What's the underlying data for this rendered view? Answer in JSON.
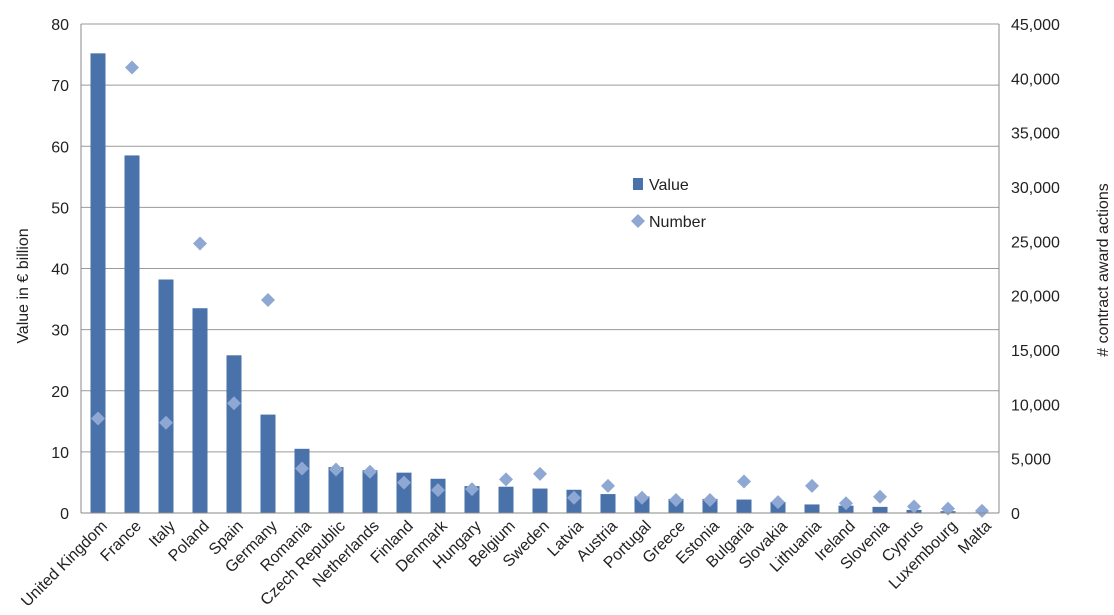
{
  "chart_data": {
    "type": "bar",
    "categories": [
      "United Kingdom",
      "France",
      "Italy",
      "Poland",
      "Spain",
      "Germany",
      "Romania",
      "Czech Republic",
      "Netherlands",
      "Finland",
      "Denmark",
      "Hungary",
      "Belgium",
      "Sweden",
      "Latvia",
      "Austria",
      "Portugal",
      "Greece",
      "Estonia",
      "Bulgaria",
      "Slovakia",
      "Lithuania",
      "Ireland",
      "Slovenia",
      "Cyprus",
      "Luxembourg",
      "Malta"
    ],
    "series": [
      {
        "name": "Value",
        "axis": "left",
        "mark": "bar",
        "color": "#4a72aa",
        "values": [
          75.2,
          58.5,
          38.2,
          33.5,
          25.8,
          16.1,
          10.5,
          7.5,
          7.0,
          6.6,
          5.6,
          4.4,
          4.3,
          4.0,
          3.8,
          3.1,
          2.7,
          2.3,
          2.3,
          2.2,
          1.8,
          1.4,
          1.2,
          1.0,
          0.5,
          0.3,
          0.1
        ]
      },
      {
        "name": "Number",
        "axis": "right",
        "mark": "diamond",
        "color": "#8ea8d3",
        "values": [
          8700,
          41000,
          8300,
          24800,
          10100,
          19600,
          4100,
          4000,
          3800,
          2800,
          2100,
          2200,
          3100,
          3600,
          1400,
          2500,
          1400,
          1200,
          1200,
          2900,
          1000,
          2500,
          900,
          1500,
          600,
          400,
          200
        ]
      }
    ],
    "ylabel": "Value in € billion",
    "y2label": "# contract award actions",
    "ylim": [
      0,
      80
    ],
    "y2lim": [
      0,
      45000
    ],
    "yticks": [
      "0",
      "10",
      "20",
      "30",
      "40",
      "50",
      "60",
      "70",
      "80"
    ],
    "y2ticks": [
      "0",
      "5,000",
      "10,000",
      "15,000",
      "20,000",
      "25,000",
      "30,000",
      "35,000",
      "40,000",
      "45,000"
    ],
    "grid": true,
    "legend_position": "center-right"
  }
}
